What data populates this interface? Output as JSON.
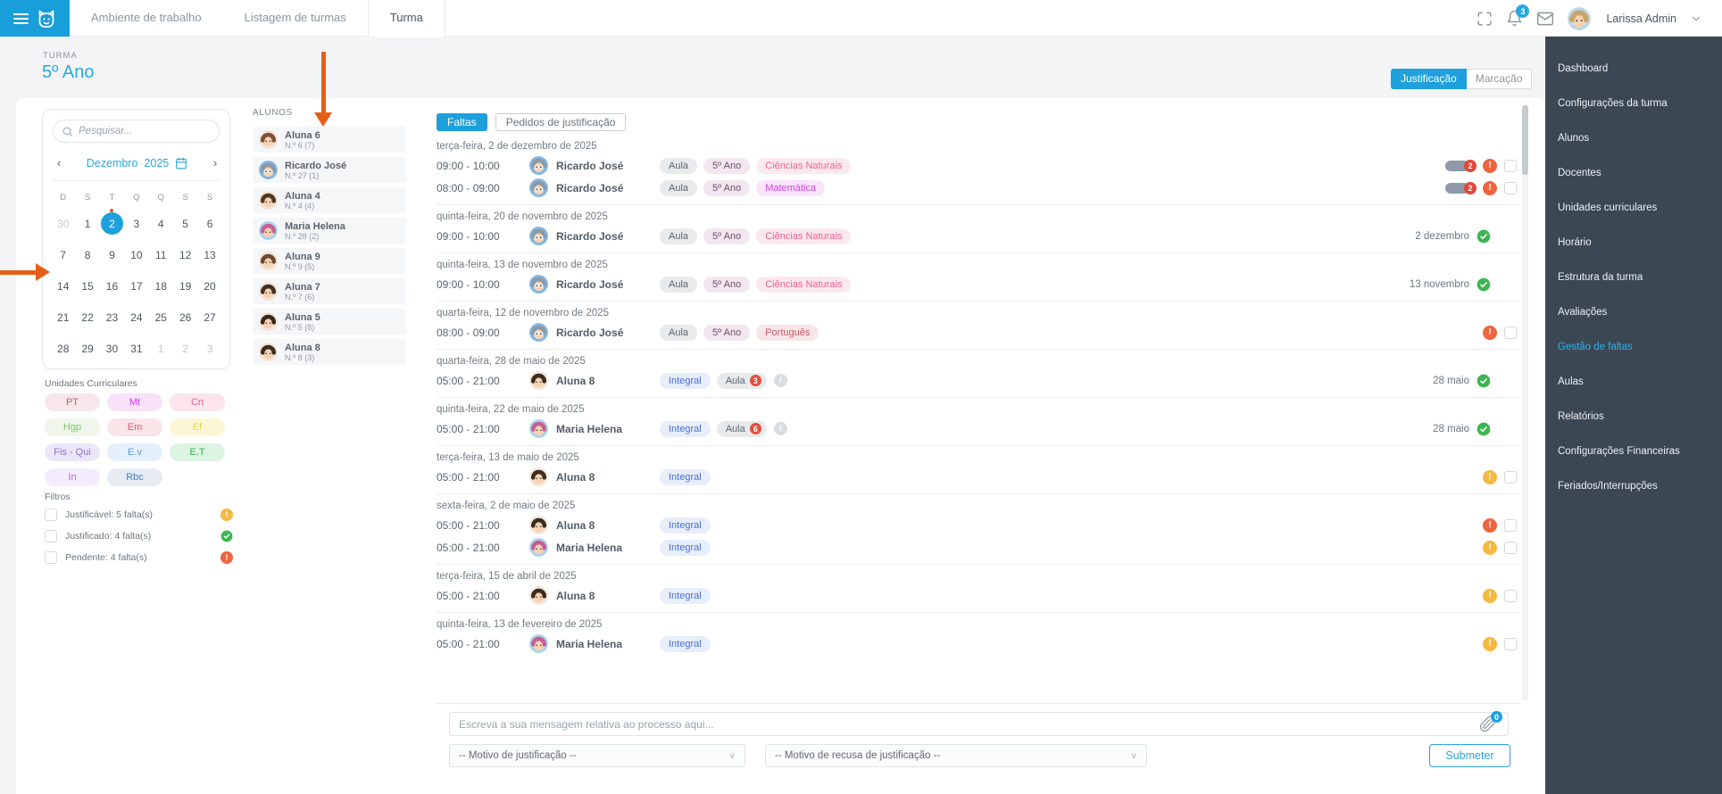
{
  "topbar": {
    "tabs": [
      {
        "label": "Ambiente de trabalho"
      },
      {
        "label": "Listagem de turmas"
      },
      {
        "label": "Turma",
        "active": true
      }
    ],
    "notification_count": "3",
    "user_name": "Larissa Admin"
  },
  "page": {
    "label": "TURMA",
    "title": "5º Ano",
    "toggle": {
      "justificacao": "Justificação",
      "marcacao": "Marcação"
    }
  },
  "left_panel": {
    "search_placeholder": "Pesquisar...",
    "calendar": {
      "month": "Dezembro",
      "year": "2025",
      "prev": "‹",
      "next": "›",
      "day_headers": [
        "D",
        "S",
        "T",
        "Q",
        "Q",
        "S",
        "S"
      ],
      "weeks": [
        [
          {
            "d": "30",
            "muted": true
          },
          {
            "d": "1"
          },
          {
            "d": "2",
            "selected": true,
            "dot": true
          },
          {
            "d": "3"
          },
          {
            "d": "4"
          },
          {
            "d": "5"
          },
          {
            "d": "6"
          }
        ],
        [
          {
            "d": "7"
          },
          {
            "d": "8"
          },
          {
            "d": "9"
          },
          {
            "d": "10"
          },
          {
            "d": "11"
          },
          {
            "d": "12"
          },
          {
            "d": "13"
          }
        ],
        [
          {
            "d": "14"
          },
          {
            "d": "15"
          },
          {
            "d": "16"
          },
          {
            "d": "17"
          },
          {
            "d": "18"
          },
          {
            "d": "19"
          },
          {
            "d": "20"
          }
        ],
        [
          {
            "d": "21"
          },
          {
            "d": "22"
          },
          {
            "d": "23"
          },
          {
            "d": "24"
          },
          {
            "d": "25"
          },
          {
            "d": "26"
          },
          {
            "d": "27"
          }
        ],
        [
          {
            "d": "28"
          },
          {
            "d": "29"
          },
          {
            "d": "30"
          },
          {
            "d": "31"
          },
          {
            "d": "1",
            "muted": true
          },
          {
            "d": "2",
            "muted": true
          },
          {
            "d": "3",
            "muted": true
          }
        ]
      ]
    },
    "uc_title": "Unidades Curriculares",
    "uc_pills": [
      {
        "label": "PT",
        "fg": "#b0616d",
        "bg": "#f7e7ea"
      },
      {
        "label": "Mt",
        "fg": "#cc3fe0",
        "bg": "#f8e2fa"
      },
      {
        "label": "Cn",
        "fg": "#ee5a8b",
        "bg": "#fbe4ec"
      },
      {
        "label": "Hgp",
        "fg": "#88c377",
        "bg": "#f0f6ec"
      },
      {
        "label": "Em",
        "fg": "#d95c6c",
        "bg": "#f9e4e8"
      },
      {
        "label": "Ef",
        "fg": "#e7d34b",
        "bg": "#fcf6d4"
      },
      {
        "label": "Fis - Qui",
        "fg": "#8d6fd6",
        "bg": "#ece6f9"
      },
      {
        "label": "E.v",
        "fg": "#5b9bd8",
        "bg": "#e5f0fa"
      },
      {
        "label": "E.T",
        "fg": "#2eb356",
        "bg": "#ddf3e3"
      },
      {
        "label": "In",
        "fg": "#a66de8",
        "bg": "#f3ecfc"
      },
      {
        "label": "Rbc",
        "fg": "#3f7dd1",
        "bg": "#e7ecf3"
      }
    ],
    "filters_title": "Filtros",
    "filters": [
      {
        "label": "Justificável: 5 falta(s)",
        "status": "yellow"
      },
      {
        "label": "Justificado: 4 falta(s)",
        "status": "green"
      },
      {
        "label": "Pendente: 4 falta(s)",
        "status": "red"
      }
    ]
  },
  "students": {
    "title": "ALUNOS",
    "items": [
      {
        "key": "aluna6",
        "name": "Aluna 6",
        "num": "N.º 6 (7)",
        "bg": "#f4e4d7",
        "hair": "#7b5136"
      },
      {
        "key": "ricardo",
        "name": "Ricardo José",
        "num": "N.º 27 (1)",
        "bg": "#7db7e8",
        "hair": "#9099a1",
        "glasses": true
      },
      {
        "key": "aluna4",
        "name": "Aluna 4",
        "num": "N.º 4 (4)",
        "bg": "#f4e4d7",
        "hair": "#503823"
      },
      {
        "key": "mariahelena",
        "name": "Maria Helena",
        "num": "N.º 28 (2)",
        "bg": "#a9d3ee",
        "hair": "#c75f92"
      },
      {
        "key": "aluna9",
        "name": "Aluna 9",
        "num": "N.º 9 (5)",
        "bg": "#f4e4d7",
        "hair": "#6a4a31"
      },
      {
        "key": "aluna7",
        "name": "Aluna 7",
        "num": "N.º 7 (6)",
        "bg": "#f4e4d7",
        "hair": "#433024"
      },
      {
        "key": "aluna5",
        "name": "Aluna 5",
        "num": "N.º 5 (8)",
        "bg": "#f4e4d7",
        "hair": "#38281c"
      },
      {
        "key": "aluna8",
        "name": "Aluna 8",
        "num": "N.º 8 (3)",
        "bg": "#f4e4d7",
        "hair": "#3c2c1f"
      }
    ]
  },
  "main": {
    "tabs": {
      "faltas": "Faltas",
      "pedidos": "Pedidos de justificação"
    },
    "tag_defs": {
      "aula": {
        "label": "Aula",
        "type": "aula"
      },
      "ano": {
        "label": "5º Ano",
        "type": "ano"
      },
      "cn": {
        "label": "Ciências Naturais",
        "type": "cn"
      },
      "mt": {
        "label": "Matemática",
        "type": "mt"
      },
      "pt": {
        "label": "Português",
        "type": "pt"
      },
      "integral": {
        "label": "Integral",
        "type": "integral"
      },
      "aula3": {
        "label": "Aula",
        "type": "aula",
        "badge": "3"
      },
      "aula6": {
        "label": "Aula",
        "type": "aula",
        "badge": "6"
      }
    },
    "groups": [
      {
        "date": "terça-feira, 2 de dezembro de 2025",
        "rows": [
          {
            "time": "09:00 - 10:00",
            "person": "ricardo",
            "tags": [
              "aula",
              "ano",
              "cn"
            ],
            "count": "2",
            "alert": "red",
            "checkbox": true
          },
          {
            "time": "08:00 - 09:00",
            "person": "ricardo",
            "tags": [
              "aula",
              "ano",
              "mt"
            ],
            "count": "2",
            "alert": "red",
            "checkbox": true
          }
        ]
      },
      {
        "date": "quinta-feira, 20 de novembro de 2025",
        "rows": [
          {
            "time": "09:00 - 10:00",
            "person": "ricardo",
            "tags": [
              "aula",
              "ano",
              "cn"
            ],
            "status_text": "2 dezembro",
            "resolved": true
          }
        ]
      },
      {
        "date": "quinta-feira, 13 de novembro de 2025",
        "rows": [
          {
            "time": "09:00 - 10:00",
            "person": "ricardo",
            "tags": [
              "aula",
              "ano",
              "cn"
            ],
            "status_text": "13 novembro",
            "resolved": true
          }
        ]
      },
      {
        "date": "quarta-feira, 12 de novembro de 2025",
        "rows": [
          {
            "time": "08:00 - 09:00",
            "person": "ricardo",
            "tags": [
              "aula",
              "ano",
              "pt"
            ],
            "alert": "red",
            "checkbox": true
          }
        ]
      },
      {
        "date": "quarta-feira, 28 de maio de 2025",
        "rows": [
          {
            "time": "05:00 - 21:00",
            "person": "aluna8",
            "tags": [
              "integral",
              "aula3"
            ],
            "info": true,
            "status_text": "28 maio",
            "resolved": true
          }
        ]
      },
      {
        "date": "quinta-feira, 22 de maio de 2025",
        "rows": [
          {
            "time": "05:00 - 21:00",
            "person": "mariahelena",
            "tags": [
              "integral",
              "aula6"
            ],
            "info": true,
            "status_text": "28 maio",
            "resolved": true
          }
        ]
      },
      {
        "date": "terça-feira, 13 de maio de 2025",
        "rows": [
          {
            "time": "05:00 - 21:00",
            "person": "aluna8",
            "tags": [
              "integral"
            ],
            "alert": "yellow",
            "checkbox": true
          }
        ]
      },
      {
        "date": "sexta-feira, 2 de maio de 2025",
        "rows": [
          {
            "time": "05:00 - 21:00",
            "person": "aluna8",
            "tags": [
              "integral"
            ],
            "alert": "red",
            "checkbox": true
          },
          {
            "time": "05:00 - 21:00",
            "person": "mariahelena",
            "tags": [
              "integral"
            ],
            "alert": "yellow",
            "checkbox": true
          }
        ]
      },
      {
        "date": "terça-feira, 15 de abril de 2025",
        "rows": [
          {
            "time": "05:00 - 21:00",
            "person": "aluna8",
            "tags": [
              "integral"
            ],
            "alert": "yellow",
            "checkbox": true
          }
        ]
      },
      {
        "date": "quinta-feira, 13 de fevereiro de 2025",
        "rows": [
          {
            "time": "05:00 - 21:00",
            "person": "mariahelena",
            "tags": [
              "integral"
            ],
            "alert": "yellow",
            "checkbox": true
          }
        ]
      }
    ]
  },
  "composer": {
    "message_placeholder": "Escreva a sua mensagem relativa ao processo aqui...",
    "attach_count": "0",
    "select_justification": "-- Motivo de justificação --",
    "select_refusal": "-- Motivo de recusa de justificação --",
    "submit_label": "Submeter"
  },
  "sidebar": {
    "active": "Gestão de faltas",
    "items": [
      "Dashboard",
      "Configurações da turma",
      "Alunos",
      "Docentes",
      "Unidades curriculares",
      "Horário",
      "Estrutura da turma",
      "Avaliações",
      "Gestão de faltas",
      "Aulas",
      "Relatórios",
      "Configurações Financeiras",
      "Feriados/Interrupções"
    ]
  },
  "colors": {
    "accent": "#1da0dc",
    "green": "#3cb551",
    "yellow": "#f6b840",
    "red": "#f0653e",
    "sidebar_bg": "#3c4754",
    "annotation_arrow": "#e55e17"
  }
}
